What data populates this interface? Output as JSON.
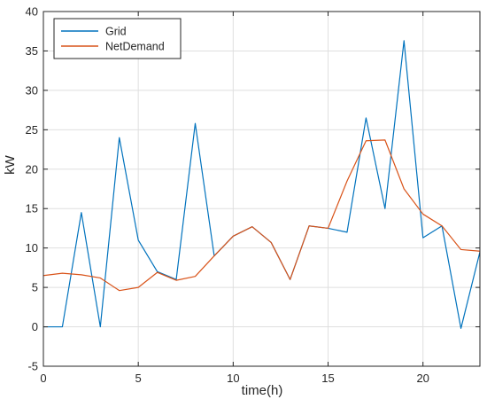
{
  "chart_data": {
    "type": "line",
    "title": "",
    "xlabel": "time(h)",
    "ylabel": "kW",
    "xlim": [
      0,
      23
    ],
    "ylim": [
      -5,
      40
    ],
    "xticks": [
      0,
      5,
      10,
      15,
      20
    ],
    "yticks": [
      -5,
      0,
      5,
      10,
      15,
      20,
      25,
      30,
      35,
      40
    ],
    "grid": true,
    "legend": "top-left",
    "x": [
      0,
      1,
      2,
      3,
      4,
      5,
      6,
      7,
      8,
      9,
      10,
      11,
      12,
      13,
      14,
      15,
      16,
      17,
      18,
      19,
      20,
      21,
      22,
      23
    ],
    "series": [
      {
        "name": "Grid",
        "color": "#0072BD",
        "values": [
          0,
          0,
          14.5,
          0,
          24,
          11,
          7,
          6,
          25.8,
          9,
          11.5,
          12.7,
          10.7,
          6,
          12.8,
          12.5,
          12,
          26.5,
          15,
          36.3,
          11.3,
          12.8,
          -0.2,
          9.5
        ]
      },
      {
        "name": "NetDemand",
        "color": "#D95319",
        "values": [
          6.5,
          6.8,
          6.6,
          6.2,
          4.6,
          5,
          6.9,
          5.9,
          6.4,
          9,
          11.5,
          12.7,
          10.7,
          6,
          12.8,
          12.5,
          18.5,
          23.6,
          23.7,
          17.5,
          14.3,
          12.8,
          9.8,
          9.6
        ]
      }
    ]
  }
}
